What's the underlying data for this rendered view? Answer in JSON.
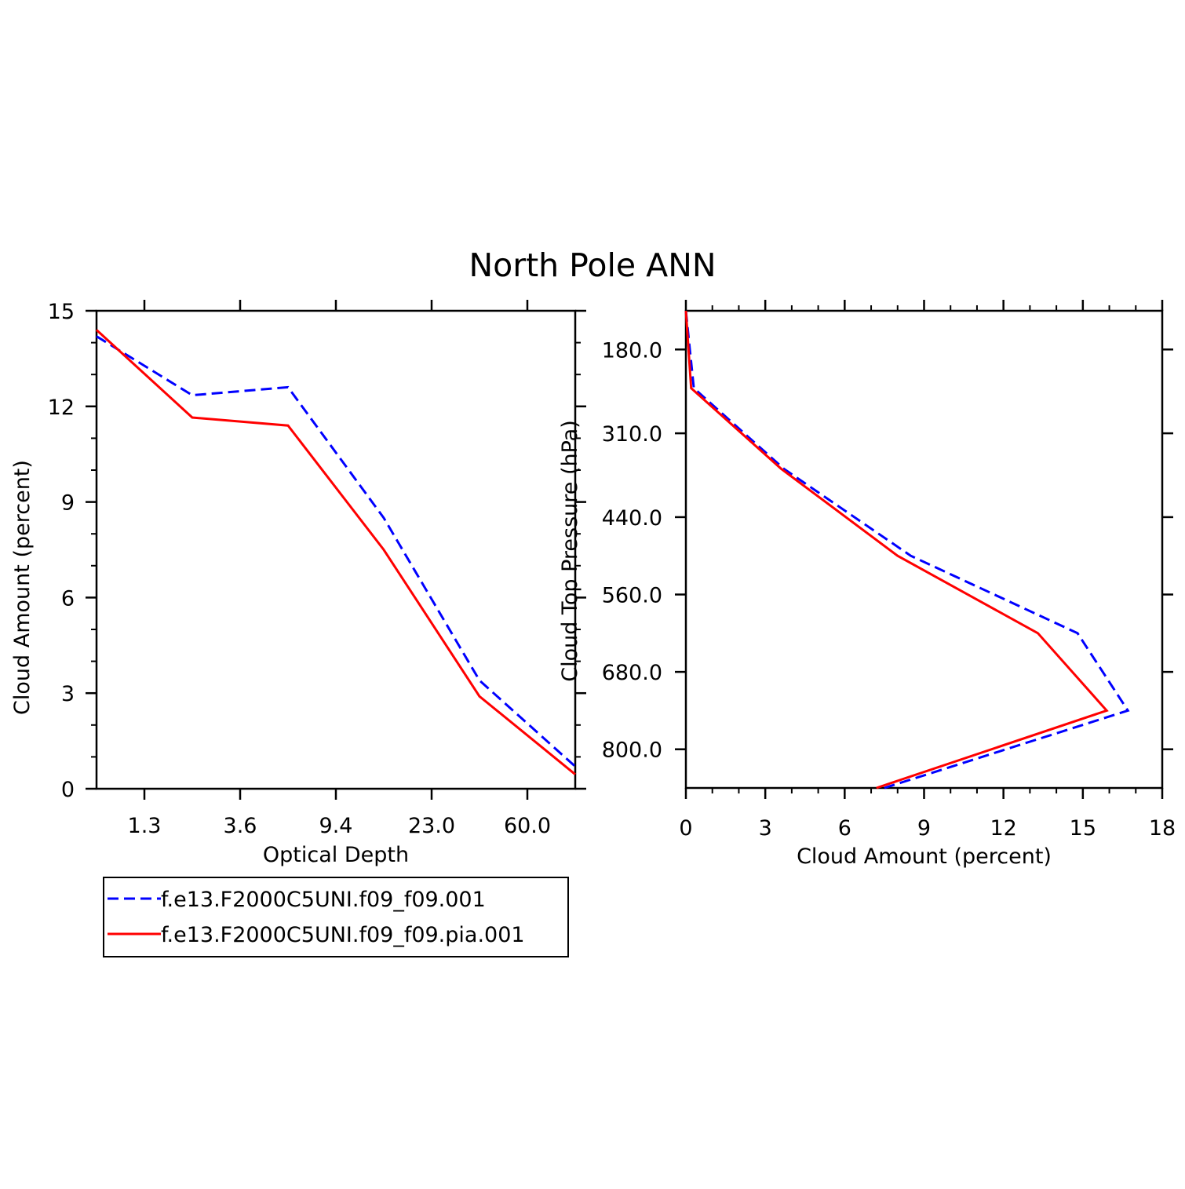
{
  "title": "North Pole ANN",
  "legend": {
    "entries": [
      {
        "label": "f.e13.F2000C5UNI.f09_f09.001",
        "color": "#0000ff",
        "dash": "dashed"
      },
      {
        "label": "f.e13.F2000C5UNI.f09_f09.pia.001",
        "color": "#ff0000",
        "dash": "solid"
      }
    ]
  },
  "chart_data": [
    {
      "type": "line",
      "xlabel": "Optical Depth",
      "ylabel": "Cloud Amount (percent)",
      "x_tick_labels": [
        "1.3",
        "3.6",
        "9.4",
        "23.0",
        "60.0"
      ],
      "x_bin_centers": [
        0.3,
        2.45,
        6.5,
        16.2,
        41.5,
        100
      ],
      "ylim": [
        0,
        15
      ],
      "y_ticks": [
        0,
        3,
        6,
        9,
        12,
        15
      ],
      "y_minor_step": 1,
      "series": [
        {
          "name": "f.e13.F2000C5UNI.f09_f09.001",
          "color": "#0000ff",
          "dash": "dashed",
          "values": [
            14.2,
            12.35,
            12.6,
            8.5,
            3.4,
            0.7
          ]
        },
        {
          "name": "f.e13.F2000C5UNI.f09_f09.pia.001",
          "color": "#ff0000",
          "dash": "solid",
          "values": [
            14.4,
            11.65,
            11.4,
            7.5,
            2.9,
            0.45
          ]
        }
      ]
    },
    {
      "type": "line",
      "xlabel": "Cloud Amount (percent)",
      "ylabel": "Cloud Top Pressure (hPa)",
      "xlim": [
        0,
        18
      ],
      "x_ticks": [
        0,
        3,
        6,
        9,
        12,
        15,
        18
      ],
      "x_minor_step": 1,
      "ylim": [
        120,
        860
      ],
      "y_inverted": true,
      "y_tick_values": [
        180,
        310,
        440,
        560,
        680,
        800
      ],
      "y_tick_labels": [
        "180.0",
        "310.0",
        "440.0",
        "560.0",
        "680.0",
        "800.0"
      ],
      "pressure_levels": [
        120,
        240,
        365,
        500,
        620,
        740,
        860
      ],
      "series": [
        {
          "name": "f.e13.F2000C5UNI.f09_f09.001",
          "color": "#0000ff",
          "dash": "dashed",
          "values": [
            0.0,
            0.3,
            3.7,
            8.5,
            14.8,
            16.7,
            7.5
          ]
        },
        {
          "name": "f.e13.F2000C5UNI.f09_f09.pia.001",
          "color": "#ff0000",
          "dash": "solid",
          "values": [
            0.0,
            0.2,
            3.6,
            8.0,
            13.3,
            15.9,
            7.2
          ]
        }
      ]
    }
  ]
}
